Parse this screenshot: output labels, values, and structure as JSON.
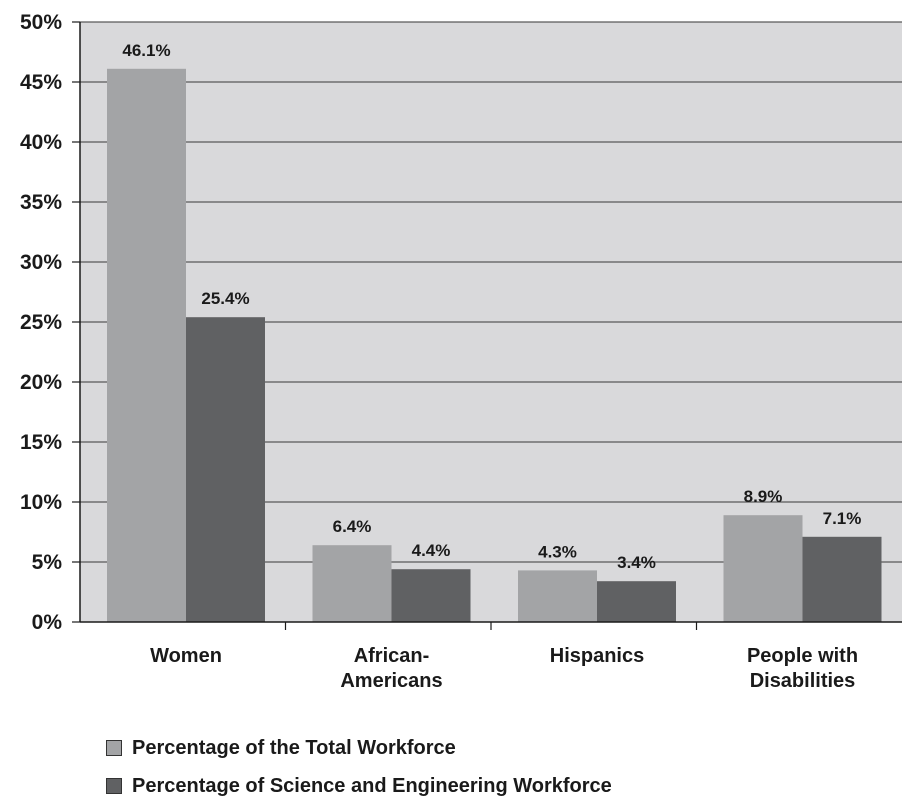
{
  "chart_data": {
    "type": "bar",
    "categories": [
      "Women",
      "African-\nAmericans",
      "Hispanics",
      "People with\nDisabilities"
    ],
    "series": [
      {
        "name": "Percentage of the Total Workforce",
        "values": [
          46.1,
          6.4,
          4.3,
          8.9
        ],
        "labels": [
          "46.1%",
          "6.4%",
          "4.3%",
          "8.9%"
        ],
        "color": "#a3a4a6"
      },
      {
        "name": "Percentage of Science and Engineering Workforce",
        "values": [
          25.4,
          4.4,
          3.4,
          7.1
        ],
        "labels": [
          "25.4%",
          "4.4%",
          "3.4%",
          "7.1%"
        ],
        "color": "#606163"
      }
    ],
    "yticks": [
      "0%",
      "5%",
      "10%",
      "15%",
      "20%",
      "25%",
      "30%",
      "35%",
      "40%",
      "45%",
      "50%"
    ],
    "ylim": [
      0,
      50
    ],
    "grid": true,
    "legend_position": "bottom-left",
    "plot_background": "#d9d9db"
  }
}
